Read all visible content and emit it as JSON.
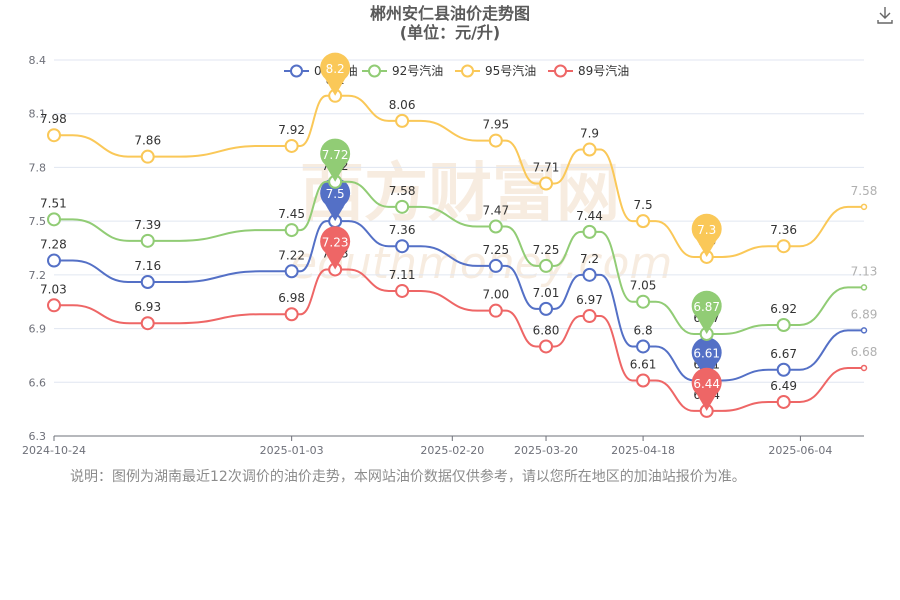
{
  "title": {
    "line1": "郴州安仁县油价走势图",
    "line2": "(单位：元/升)"
  },
  "download_icon": "download-icon",
  "footer_note": "说明：图例为湖南最近12次调价的油价走势，本网站油价数据仅供参考，请以您所在地区的加油站报价为准。",
  "watermark": {
    "text": "西方财富网",
    "subtext": "eouthmoney.com"
  },
  "chart_data": {
    "type": "line",
    "ylim": [
      6.3,
      8.4
    ],
    "yticks": [
      "6.3",
      "6.6",
      "6.9",
      "7.2",
      "7.5",
      "7.8",
      "8.1",
      "8.4"
    ],
    "xlim": [
      "2024-10-24",
      "2025-06-23"
    ],
    "xtick_labels": [
      "2024-10-24",
      "2025-01-03",
      "2025-02-20",
      "2025-03-20",
      "2025-04-18",
      "2025-06-04"
    ],
    "legend_position": "top",
    "grid": true,
    "x": [
      "2024-10-24",
      "2024-11-21",
      "2025-01-03",
      "2025-01-16",
      "2025-02-05",
      "2025-03-05",
      "2025-03-20",
      "2025-04-02",
      "2025-04-18",
      "2025-05-07",
      "2025-05-30",
      "2025-06-23"
    ],
    "series": [
      {
        "name": "0号柴油",
        "color": "#5470c6",
        "values": [
          7.28,
          7.16,
          7.22,
          7.5,
          7.36,
          7.25,
          7.01,
          7.2,
          6.8,
          6.61,
          6.67,
          6.89
        ],
        "labels": [
          "7.28",
          "7.16",
          "7.22",
          "7.5",
          "7.36",
          "7.25",
          "7.01",
          "7.2",
          "6.8",
          "6.61",
          "6.67",
          "6.89"
        ],
        "max_pin": "7.5",
        "min_pin": "6.61"
      },
      {
        "name": "92号汽油",
        "color": "#91cc75",
        "values": [
          7.51,
          7.39,
          7.45,
          7.72,
          7.58,
          7.47,
          7.25,
          7.44,
          7.05,
          6.87,
          6.92,
          7.13
        ],
        "labels": [
          "7.51",
          "7.39",
          "7.45",
          "7.72",
          "7.58",
          "7.47",
          "7.25",
          "7.44",
          "7.05",
          "6.87",
          "6.92",
          "7.13"
        ],
        "max_pin": "7.72",
        "min_pin": "6.87"
      },
      {
        "name": "95号汽油",
        "color": "#fac858",
        "values": [
          7.98,
          7.86,
          7.92,
          8.2,
          8.06,
          7.95,
          7.71,
          7.9,
          7.5,
          7.3,
          7.36,
          7.58
        ],
        "labels": [
          "7.98",
          "7.86",
          "7.92",
          "8.2",
          "8.06",
          "7.95",
          "7.71",
          "7.9",
          "7.5",
          "7.3",
          "7.36",
          "7.58"
        ],
        "max_pin": "8.2",
        "min_pin": "7.3"
      },
      {
        "name": "89号汽油",
        "color": "#ee6666",
        "values": [
          7.03,
          6.93,
          6.98,
          7.23,
          7.11,
          7.0,
          6.8,
          6.97,
          6.61,
          6.44,
          6.49,
          6.68
        ],
        "labels": [
          "7.03",
          "6.93",
          "6.98",
          "7.23",
          "7.11",
          "7.00",
          "6.80",
          "6.97",
          "6.61",
          "6.44",
          "6.49",
          "6.68"
        ],
        "max_pin": "7.23",
        "min_pin": "6.44"
      }
    ]
  }
}
